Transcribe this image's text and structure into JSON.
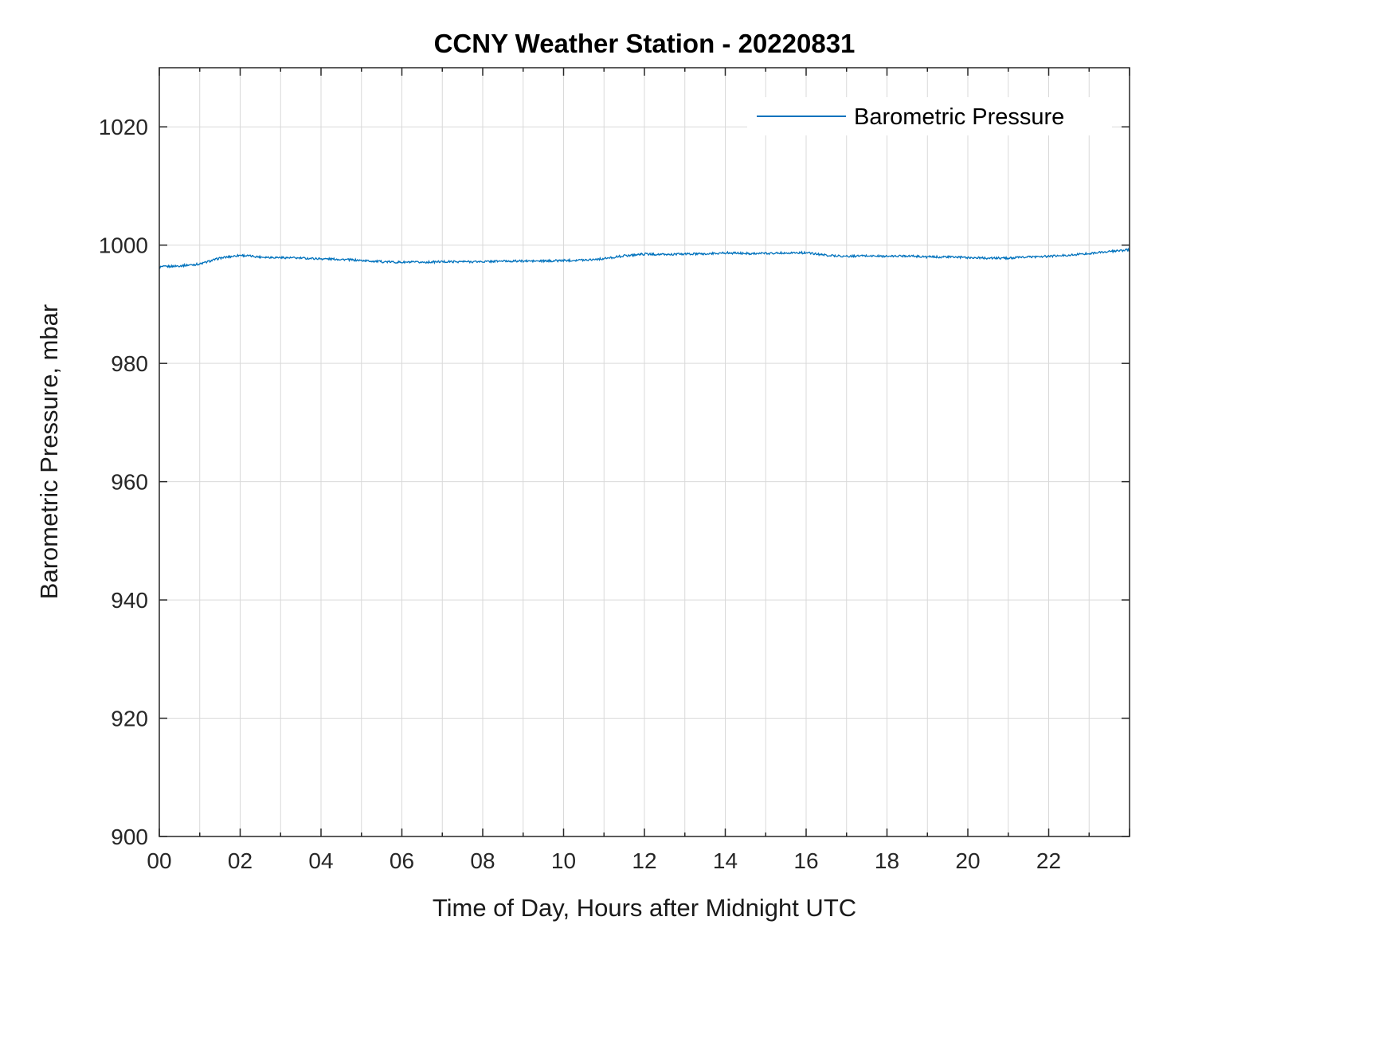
{
  "chart_data": {
    "type": "line",
    "title": "CCNY Weather Station - 20220831",
    "xlabel": "Time of Day, Hours after Midnight UTC",
    "ylabel": "Barometric Pressure, mbar",
    "xlim": [
      0,
      24
    ],
    "ylim": [
      900,
      1030
    ],
    "xticks": [
      0,
      2,
      4,
      6,
      8,
      10,
      12,
      14,
      16,
      18,
      20,
      22
    ],
    "xtick_labels": [
      "00",
      "02",
      "04",
      "06",
      "08",
      "10",
      "12",
      "14",
      "16",
      "18",
      "20",
      "22"
    ],
    "x_minor_step": 1,
    "yticks": [
      900,
      920,
      940,
      960,
      980,
      1000,
      1020
    ],
    "ytick_labels": [
      "900",
      "920",
      "940",
      "960",
      "980",
      "1000",
      "1020"
    ],
    "grid": true,
    "grid_color": "#d9d9d9",
    "axes_color": "#262626",
    "legend": {
      "position": "top-right",
      "entries": [
        {
          "label": "Barometric Pressure",
          "color": "#0072BD"
        }
      ]
    },
    "noise_mbar": 0.18,
    "series": [
      {
        "name": "Barometric Pressure",
        "color": "#0072BD",
        "x": [
          0,
          0.5,
          1,
          1.5,
          2,
          2.5,
          3,
          3.5,
          4,
          4.5,
          5,
          5.5,
          6,
          6.5,
          7,
          7.5,
          8,
          8.5,
          9,
          9.5,
          10,
          10.5,
          11,
          11.5,
          12,
          12.5,
          13,
          13.5,
          14,
          14.5,
          15,
          15.5,
          16,
          16.5,
          17,
          17.5,
          18,
          18.5,
          19,
          19.5,
          20,
          20.5,
          21,
          21.5,
          22,
          22.5,
          23,
          23.5,
          24
        ],
        "y": [
          996.3,
          996.5,
          996.8,
          997.8,
          998.3,
          998.0,
          997.9,
          997.8,
          997.7,
          997.6,
          997.4,
          997.2,
          997.1,
          997.1,
          997.2,
          997.2,
          997.2,
          997.3,
          997.3,
          997.3,
          997.4,
          997.5,
          997.7,
          998.2,
          998.5,
          998.4,
          998.5,
          998.5,
          998.7,
          998.6,
          998.6,
          998.7,
          998.7,
          998.3,
          998.1,
          998.2,
          998.1,
          998.2,
          998.0,
          998.0,
          997.9,
          997.8,
          997.8,
          998.0,
          998.1,
          998.3,
          998.6,
          998.9,
          999.2
        ]
      }
    ]
  }
}
